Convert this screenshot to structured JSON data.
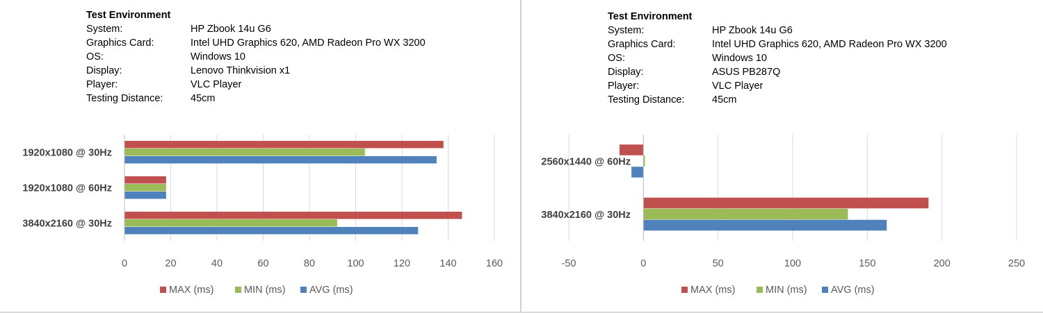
{
  "panels": [
    {
      "env": {
        "title": "Test Environment",
        "rows": [
          {
            "key": "System:",
            "value": "HP Zbook 14u G6"
          },
          {
            "key": "Graphics Card:",
            "value": "Intel UHD Graphics 620, AMD Radeon Pro WX 3200"
          },
          {
            "key": "OS:",
            "value": "Windows 10"
          },
          {
            "key": "Display:",
            "value": "Lenovo Thinkvision x1"
          },
          {
            "key": "Player:",
            "value": "VLC Player"
          },
          {
            "key": "Testing Distance:",
            "value": "45cm"
          }
        ]
      }
    },
    {
      "env": {
        "title": "Test Environment",
        "rows": [
          {
            "key": "System:",
            "value": "HP Zbook 14u G6"
          },
          {
            "key": "Graphics Card:",
            "value": "Intel UHD Graphics 620, AMD Radeon Pro WX 3200"
          },
          {
            "key": "OS:",
            "value": "Windows 10"
          },
          {
            "key": "Display:",
            "value": "ASUS PB287Q"
          },
          {
            "key": "Player:",
            "value": "VLC Player"
          },
          {
            "key": "Testing Distance:",
            "value": "45cm"
          }
        ]
      }
    }
  ],
  "chart_data": [
    {
      "type": "bar",
      "orientation": "horizontal",
      "categories": [
        "1920x1080 @ 30Hz",
        "1920x1080 @ 60Hz",
        "3840x2160 @ 30Hz"
      ],
      "series": [
        {
          "name": "MAX (ms)",
          "color": "#c0504d",
          "values": [
            138,
            18,
            146
          ]
        },
        {
          "name": "MIN (ms)",
          "color": "#9bbb59",
          "values": [
            104,
            18,
            92
          ]
        },
        {
          "name": "AVG (ms)",
          "color": "#4f81bd",
          "values": [
            135,
            18,
            127
          ]
        }
      ],
      "xlim": [
        0,
        160
      ],
      "ticks": [
        0,
        20,
        40,
        60,
        80,
        100,
        120,
        140,
        160
      ],
      "grid": true,
      "legend": "bottom"
    },
    {
      "type": "bar",
      "orientation": "horizontal",
      "categories": [
        "2560x1440 @ 60Hz",
        "3840x2160 @ 30Hz"
      ],
      "series": [
        {
          "name": "MAX (ms)",
          "color": "#c0504d",
          "values": [
            -16,
            191
          ]
        },
        {
          "name": "MIN (ms)",
          "color": "#9bbb59",
          "values": [
            1,
            137
          ]
        },
        {
          "name": "AVG (ms)",
          "color": "#4f81bd",
          "values": [
            -8,
            163
          ]
        }
      ],
      "xlim": [
        -50,
        250
      ],
      "ticks": [
        -50,
        0,
        50,
        100,
        150,
        200,
        250
      ],
      "grid": true,
      "legend": "bottom"
    }
  ]
}
